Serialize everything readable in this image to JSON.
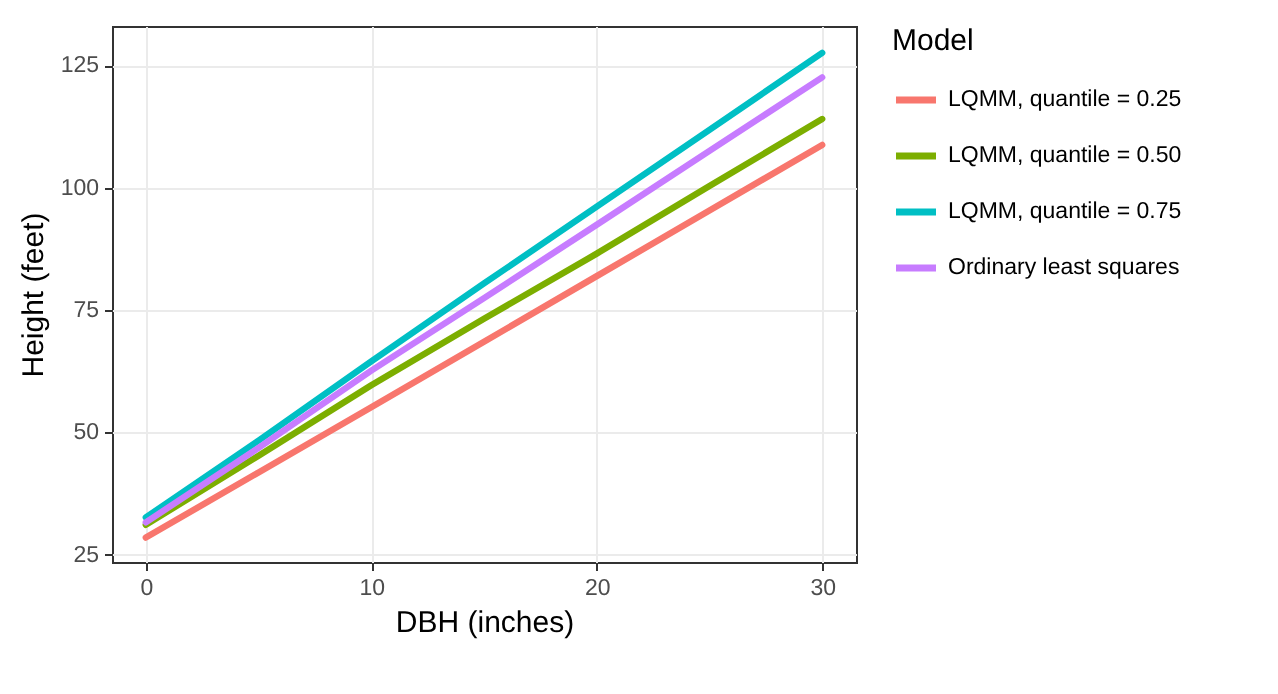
{
  "chart_data": {
    "type": "line",
    "xlabel": "DBH (inches)",
    "ylabel": "Height (feet)",
    "legend_title": "Model",
    "x": [
      0,
      5,
      10,
      15,
      20,
      25,
      30
    ],
    "series": [
      {
        "name": "LQMM, quantile = 0.25",
        "color": "#f8766d",
        "values": [
          28.5,
          41.8,
          55.1,
          68.5,
          81.9,
          95.3,
          108.7
        ]
      },
      {
        "name": "LQMM, quantile = 0.50",
        "color": "#7cae00",
        "values": [
          31.1,
          45.2,
          59.6,
          73.2,
          86.5,
          100.3,
          114
        ]
      },
      {
        "name": "LQMM, quantile = 0.75",
        "color": "#00bfc4",
        "values": [
          32.6,
          48.3,
          64.5,
          80.4,
          96.1,
          111.8,
          127.5
        ]
      },
      {
        "name": "Ordinary least squares",
        "color": "#c77cff",
        "values": [
          31.6,
          46.8,
          62.6,
          77.4,
          92.4,
          107.5,
          122.5
        ]
      }
    ],
    "xlim": [
      -1.5,
      31.5
    ],
    "ylim": [
      23.5,
      133
    ],
    "xticks": [
      0,
      10,
      20,
      30
    ],
    "yticks": [
      25,
      50,
      75,
      100,
      125
    ],
    "grid": true,
    "legend": "right",
    "line_style": "solid",
    "marker": "none"
  }
}
